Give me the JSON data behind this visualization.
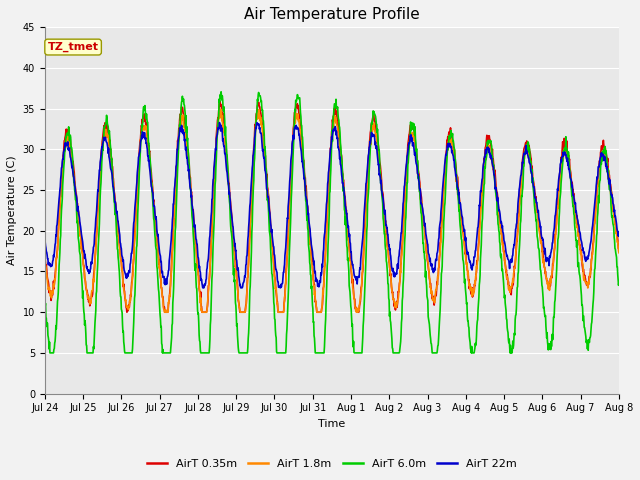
{
  "title": "Air Temperature Profile",
  "xlabel": "Time",
  "ylabel": "Air Temperature (C)",
  "ylim": [
    0,
    45
  ],
  "yticks": [
    0,
    5,
    10,
    15,
    20,
    25,
    30,
    35,
    40,
    45
  ],
  "plot_bg_color": "#e8e8e8",
  "fig_bg_color": "#f2f2f2",
  "annotation_text": "TZ_tmet",
  "annotation_color": "#cc0000",
  "annotation_bg": "#ffffcc",
  "annotation_edge": "#999900",
  "legend_labels": [
    "AirT 0.35m",
    "AirT 1.8m",
    "AirT 6.0m",
    "AirT 22m"
  ],
  "line_colors": [
    "#dd0000",
    "#ff8800",
    "#00cc00",
    "#0000cc"
  ],
  "date_labels": [
    "Jul 24",
    "Jul 25",
    "Jul 26",
    "Jul 27",
    "Jul 28",
    "Jul 29",
    "Jul 30",
    "Jul 31",
    "Aug 1",
    "Aug 2",
    "Aug 3",
    "Aug 4",
    "Aug 5",
    "Aug 6",
    "Aug 7",
    "Aug 8"
  ],
  "grid_color": "#ffffff",
  "n_days": 15,
  "pts_per_day": 96,
  "title_fontsize": 11,
  "axis_fontsize": 8,
  "tick_fontsize": 7,
  "legend_fontsize": 8
}
